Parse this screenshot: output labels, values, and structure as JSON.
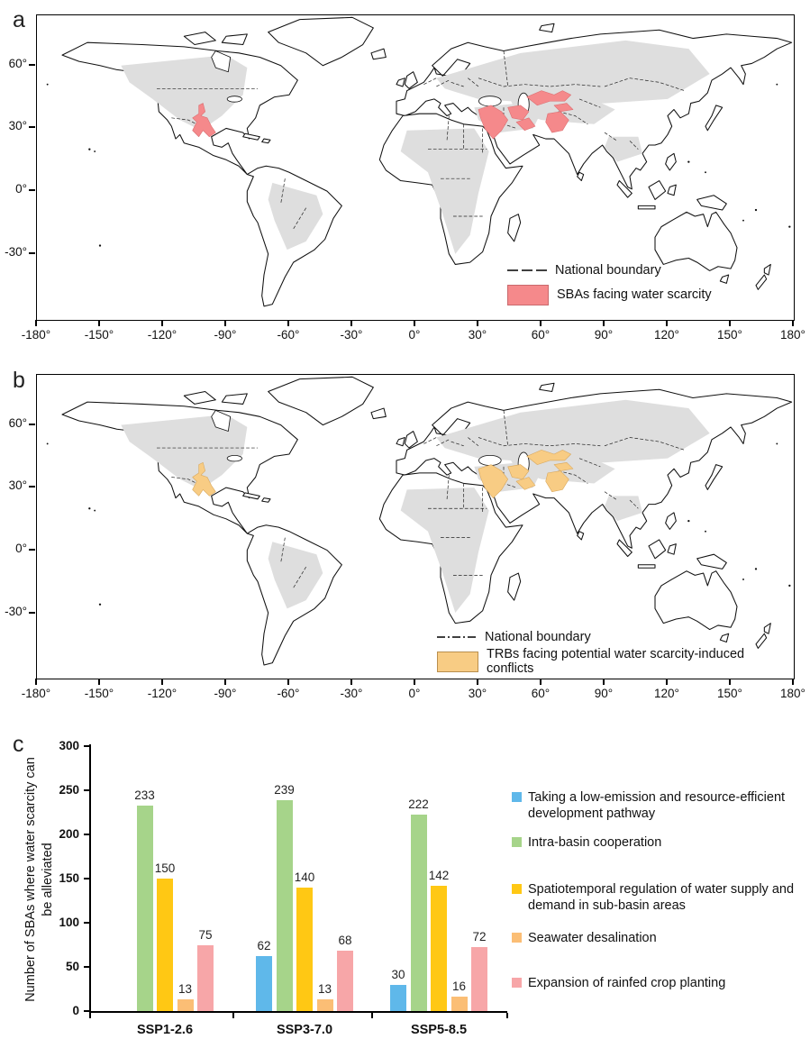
{
  "panel_a": {
    "label": "a",
    "x_tick_labels": [
      "-180°",
      "-150°",
      "-120°",
      "-90°",
      "-60°",
      "-30°",
      "0°",
      "30°",
      "60°",
      "90°",
      "120°",
      "150°",
      "180°"
    ],
    "y_tick_labels": [
      "60°",
      "30°",
      "0°",
      "-30°"
    ],
    "legend": {
      "boundary": "National boundary",
      "highlight": "SBAs facing water scarcity"
    },
    "highlight_color": "#f5898b",
    "highlight_border": "#db6d70"
  },
  "panel_b": {
    "label": "b",
    "x_tick_labels": [
      "-180°",
      "-150°",
      "-120°",
      "-90°",
      "-60°",
      "-30°",
      "0°",
      "30°",
      "60°",
      "90°",
      "120°",
      "150°",
      "180°"
    ],
    "y_tick_labels": [
      "60°",
      "30°",
      "0°",
      "-30°"
    ],
    "legend": {
      "boundary": "National boundary",
      "highlight": "TRBs facing potential water scarcity-induced conflicts"
    },
    "highlight_color": "#f8cc84",
    "highlight_border": "#d8a75c"
  },
  "panel_c": {
    "label": "c",
    "ylabel_line1": "Number of SBAs where water scarcity can",
    "ylabel_line2": "be alleviated"
  },
  "chart_data": {
    "type": "bar",
    "title": "",
    "categories": [
      "SSP1-2.6",
      "SSP3-7.0",
      "SSP5-8.5"
    ],
    "series": [
      {
        "name": "Taking a low-emission and resource-efficient development pathway",
        "color": "#5fb8ea",
        "values": [
          null,
          62,
          30
        ]
      },
      {
        "name": "Intra-basin cooperation",
        "color": "#a6d48a",
        "values": [
          233,
          239,
          222
        ]
      },
      {
        "name": "Spatiotemporal regulation of water supply and demand in sub-basin areas",
        "color": "#ffc814",
        "values": [
          150,
          140,
          142
        ]
      },
      {
        "name": "Seawater desalination",
        "color": "#fbbe75",
        "values": [
          13,
          13,
          16
        ]
      },
      {
        "name": "Expansion of rainfed crop planting",
        "color": "#f7a6a8",
        "values": [
          75,
          68,
          72
        ]
      }
    ],
    "ylabel": "Number of SBAs where water scarcity can be alleviated",
    "ylim": [
      0,
      300
    ],
    "yticks": [
      0,
      50,
      100,
      150,
      200,
      250,
      300
    ],
    "grid": false,
    "legend_position": "right"
  }
}
